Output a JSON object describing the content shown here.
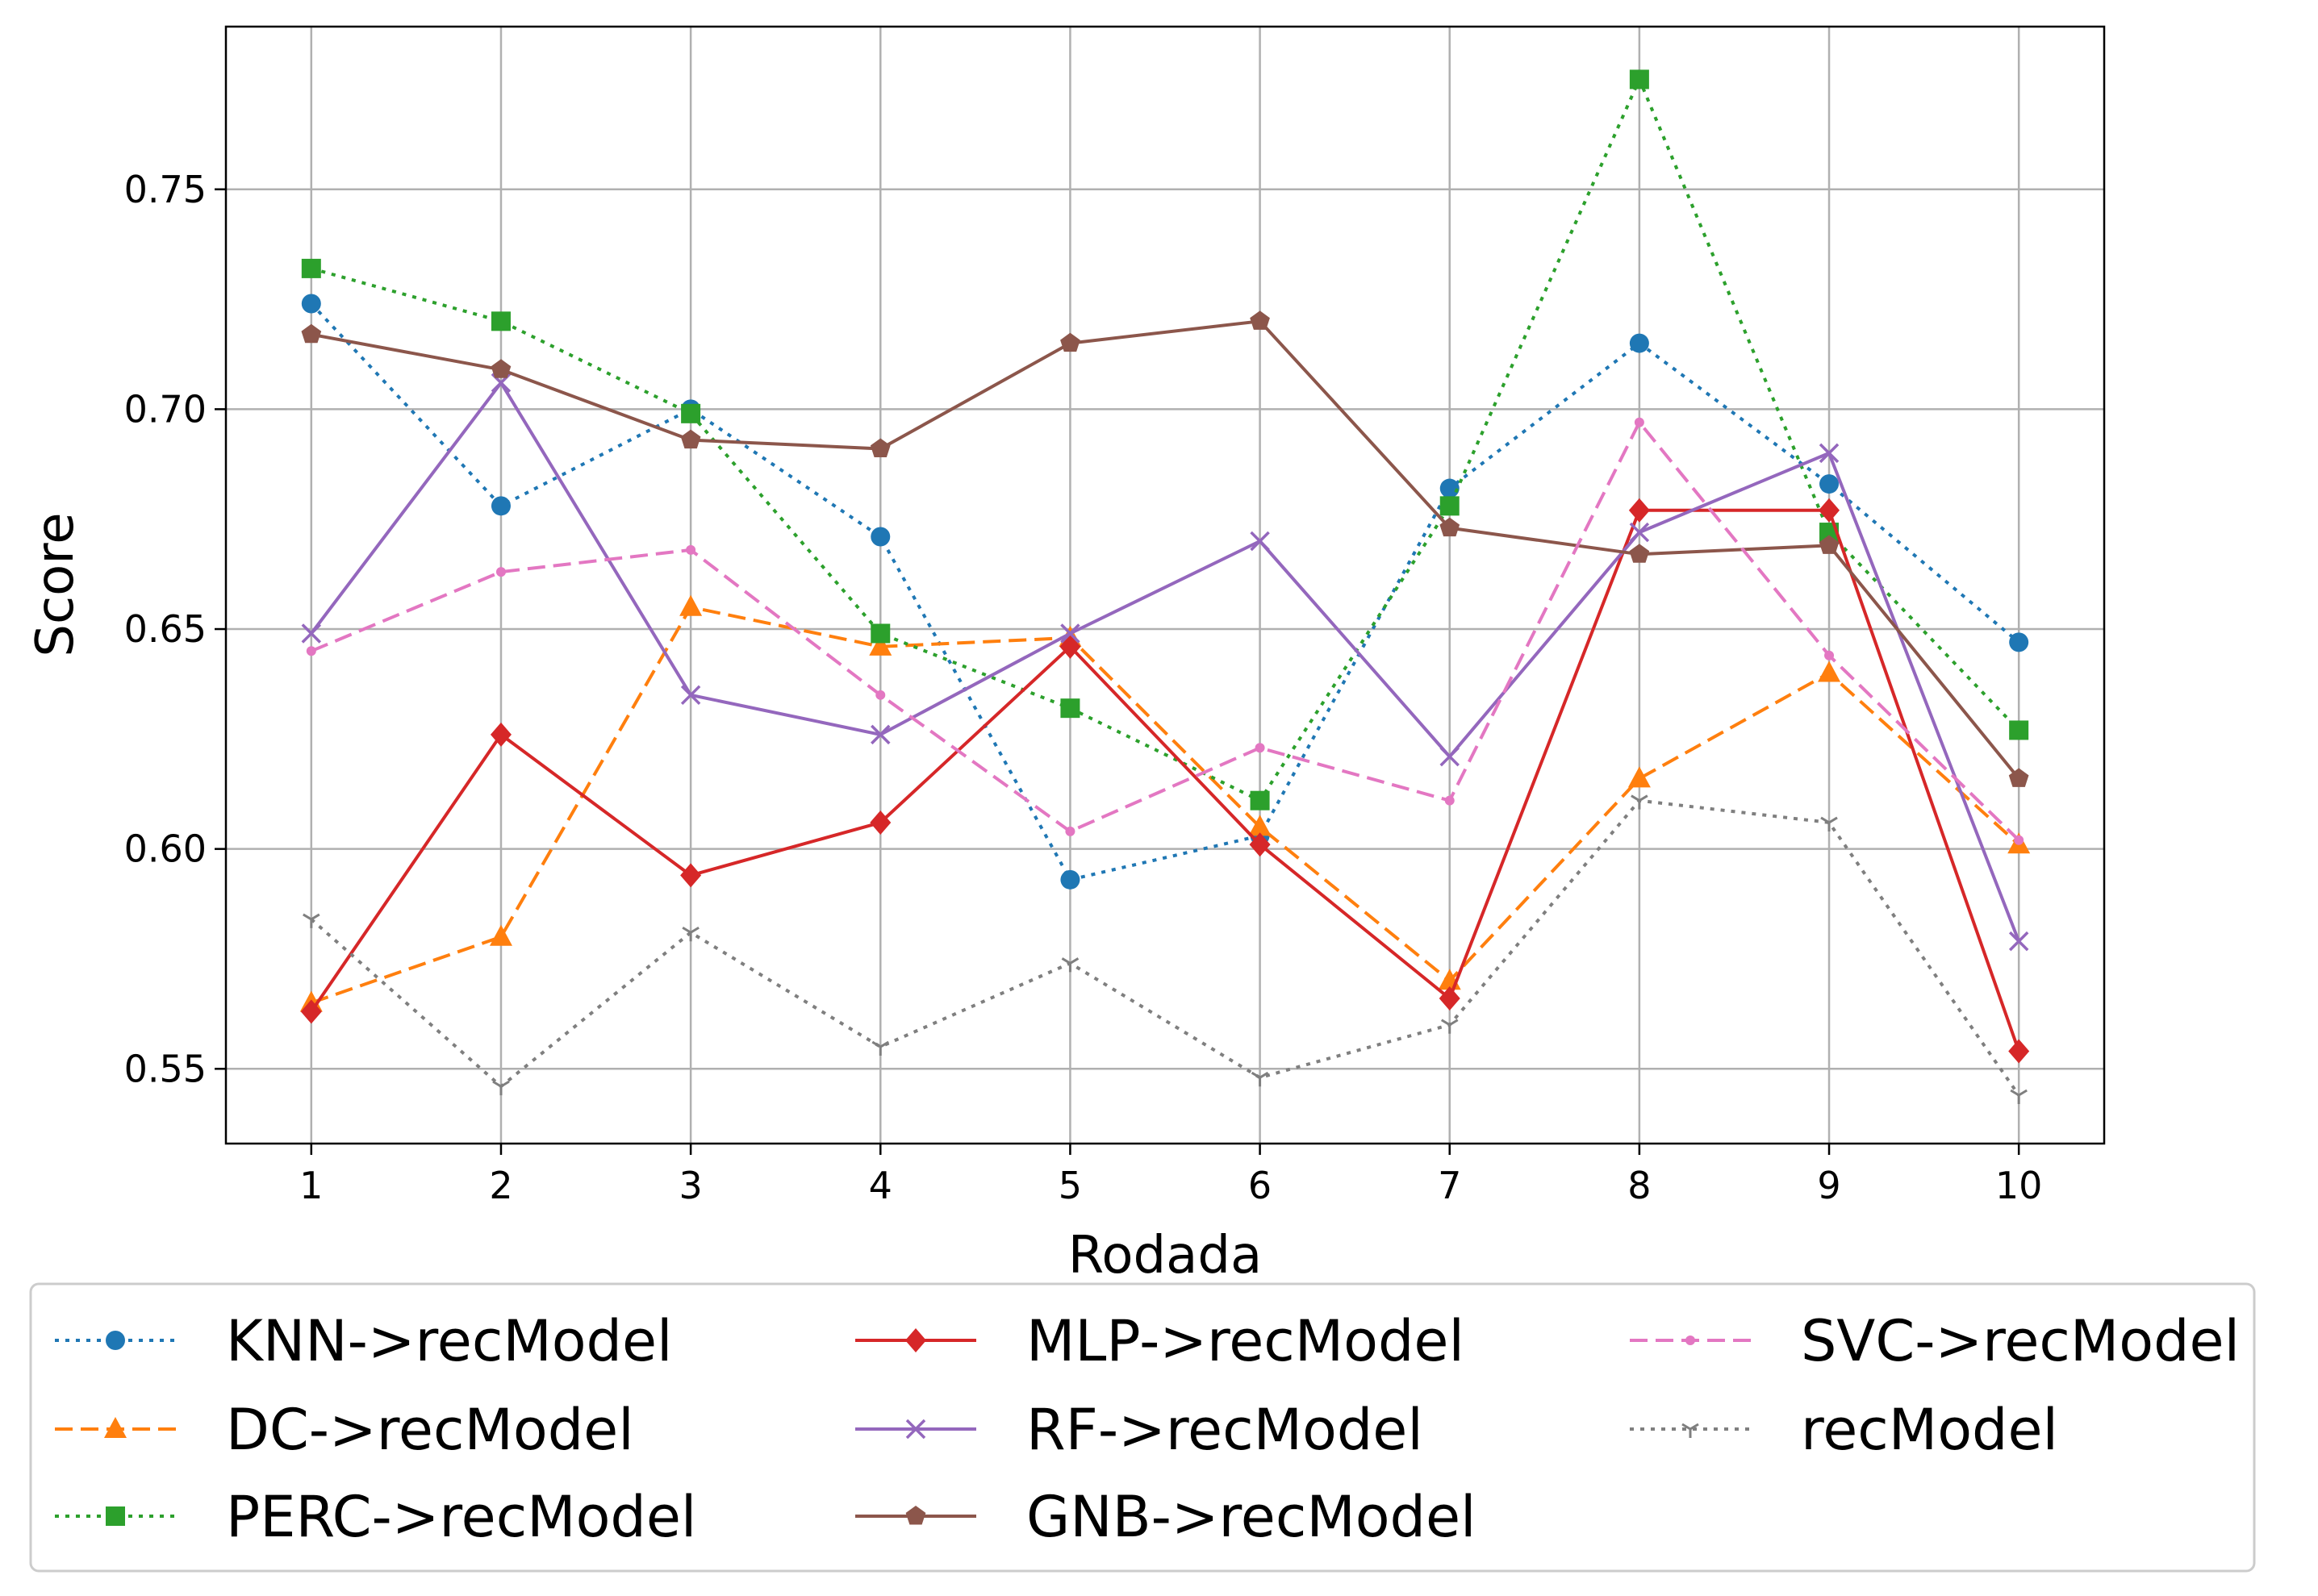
{
  "chart_data": {
    "type": "line",
    "title": "",
    "xlabel": "Rodada",
    "ylabel": "Score",
    "x": [
      1,
      2,
      3,
      4,
      5,
      6,
      7,
      8,
      9,
      10
    ],
    "xlim": [
      0.55,
      10.45
    ],
    "ylim": [
      0.533,
      0.787
    ],
    "yticks": [
      0.55,
      0.6,
      0.65,
      0.7,
      0.75
    ],
    "ytick_labels": [
      "0.55",
      "0.60",
      "0.65",
      "0.70",
      "0.75"
    ],
    "xtick_labels": [
      "1",
      "2",
      "3",
      "4",
      "5",
      "6",
      "7",
      "8",
      "9",
      "10"
    ],
    "grid": true,
    "legend_position": "bottom",
    "series": [
      {
        "name": "KNN->recModel",
        "color": "#1f77b4",
        "dash": "dotted",
        "marker": "circle",
        "values": [
          0.724,
          0.678,
          0.7,
          0.671,
          0.593,
          0.603,
          0.682,
          0.715,
          0.683,
          0.647
        ]
      },
      {
        "name": "DC->recModel",
        "color": "#ff7f0e",
        "dash": "dashed",
        "marker": "triangle",
        "values": [
          0.565,
          0.58,
          0.655,
          0.646,
          0.648,
          0.605,
          0.57,
          0.616,
          0.64,
          0.601
        ]
      },
      {
        "name": "PERC->recModel",
        "color": "#2ca02c",
        "dash": "dotted",
        "marker": "square",
        "values": [
          0.732,
          0.72,
          0.699,
          0.649,
          0.632,
          0.611,
          0.678,
          0.775,
          0.672,
          0.627
        ]
      },
      {
        "name": "MLP->recModel",
        "color": "#d62728",
        "dash": "solid",
        "marker": "diamond",
        "values": [
          0.563,
          0.626,
          0.594,
          0.606,
          0.646,
          0.601,
          0.566,
          0.677,
          0.677,
          0.554
        ]
      },
      {
        "name": "RF->recModel",
        "color": "#9467bd",
        "dash": "solid",
        "marker": "x",
        "values": [
          0.649,
          0.706,
          0.635,
          0.626,
          0.649,
          0.67,
          0.621,
          0.672,
          0.69,
          0.579
        ]
      },
      {
        "name": "GNB->recModel",
        "color": "#8c564b",
        "dash": "solid",
        "marker": "pentagon",
        "values": [
          0.717,
          0.709,
          0.693,
          0.691,
          0.715,
          0.72,
          0.673,
          0.667,
          0.669,
          0.616
        ]
      },
      {
        "name": "SVC->recModel",
        "color": "#e377c2",
        "dash": "dashed",
        "marker": "point",
        "values": [
          0.645,
          0.663,
          0.668,
          0.635,
          0.604,
          0.623,
          0.611,
          0.697,
          0.644,
          0.602
        ]
      },
      {
        "name": "recModel",
        "color": "#7f7f7f",
        "dash": "dotted",
        "marker": "tri_down",
        "values": [
          0.584,
          0.546,
          0.581,
          0.555,
          0.574,
          0.548,
          0.56,
          0.611,
          0.606,
          0.544
        ]
      }
    ]
  }
}
